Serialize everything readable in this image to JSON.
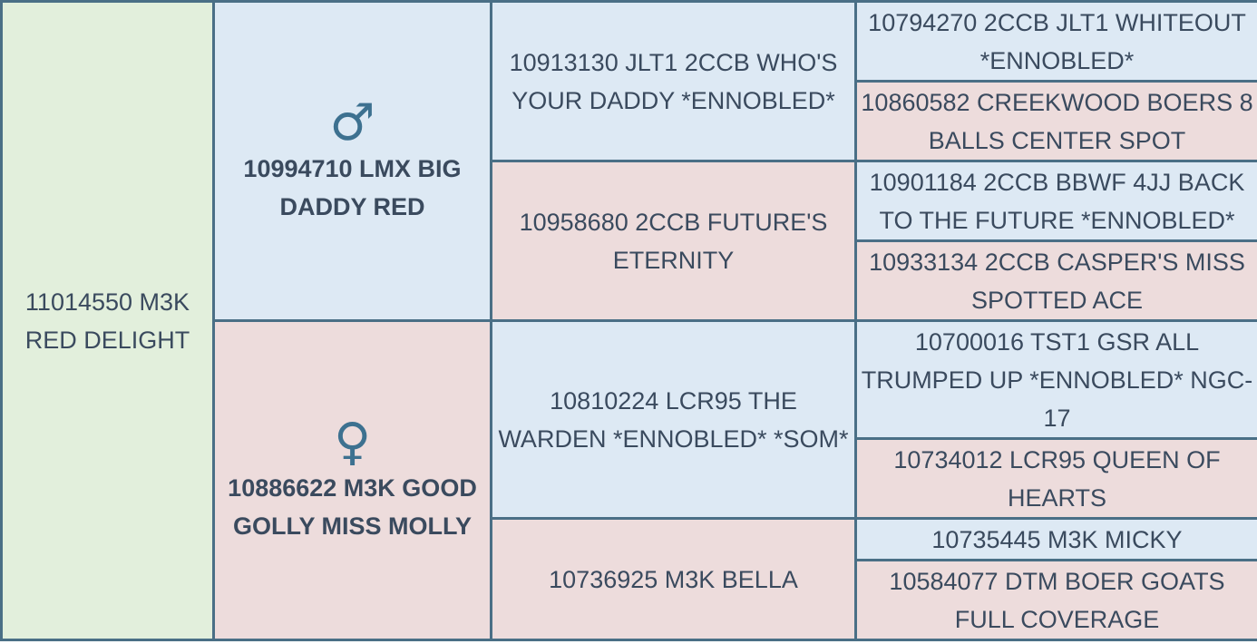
{
  "colors": {
    "animal_bg": "#e2efdc",
    "sire_bg": "#dde9f4",
    "dam_bg": "#eddcdc",
    "border": "#4a6f86",
    "text": "#3a4a5e",
    "symbol": "#3d7190"
  },
  "pedigree": {
    "animal": "11014550 M3K RED DELIGHT",
    "sire": {
      "symbol": "♂",
      "icon": "male-symbol-icon",
      "name": "10994710 LMX BIG DADDY RED",
      "sire": {
        "name": "10913130 JLT1 2CCB WHO'S YOUR DADDY *ENNOBLED*",
        "sire": "10794270 2CCB JLT1 WHITEOUT *ENNOBLED*",
        "dam": "10860582 CREEKWOOD BOERS 8 BALLS CENTER SPOT"
      },
      "dam": {
        "name": "10958680 2CCB FUTURE'S ETERNITY",
        "sire": "10901184 2CCB BBWF 4JJ BACK TO THE FUTURE *ENNOBLED*",
        "dam": "10933134 2CCB CASPER'S MISS SPOTTED ACE"
      }
    },
    "dam": {
      "symbol": "♀",
      "icon": "female-symbol-icon",
      "name": "10886622 M3K GOOD GOLLY MISS MOLLY",
      "sire": {
        "name": "10810224 LCR95 THE WARDEN *ENNOBLED* *SOM*",
        "sire": "10700016 TST1 GSR ALL TRUMPED UP *ENNOBLED* NGC-17",
        "dam": "10734012 LCR95 QUEEN OF HEARTS"
      },
      "dam": {
        "name": "10736925 M3K BELLA",
        "sire": "10735445 M3K MICKY",
        "dam": "10584077 DTM BOER GOATS FULL COVERAGE"
      }
    }
  }
}
